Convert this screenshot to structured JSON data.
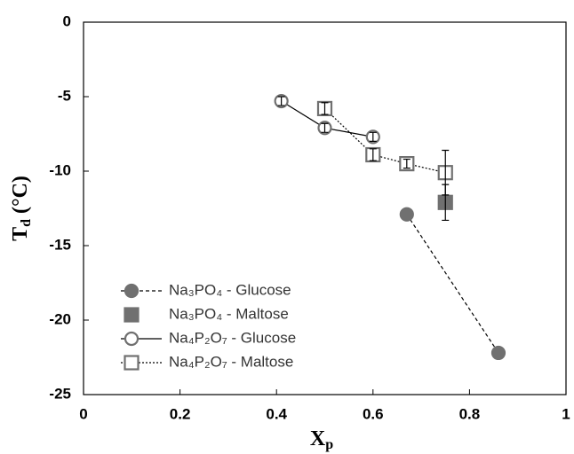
{
  "chart_data": {
    "type": "scatter",
    "x_label": {
      "main": "X",
      "sub": "p"
    },
    "y_label": {
      "main": "T",
      "sub": "d",
      "rest": " (°C)"
    },
    "xlim": [
      0,
      1
    ],
    "xticks": [
      0,
      0.2,
      0.4,
      0.6,
      0.8,
      1
    ],
    "ylim": [
      -25,
      0
    ],
    "yticks": [
      0,
      -5,
      -10,
      -15,
      -20,
      -25
    ],
    "legend": "lower left",
    "series": [
      {
        "name": "Na₃PO₄ - Glucose",
        "color": "#707070",
        "marker": "circle",
        "filled": true,
        "linestyle": "dashed",
        "x": [
          0.67,
          0.86
        ],
        "values": [
          -12.9,
          -22.2
        ],
        "errors": [
          null,
          null
        ]
      },
      {
        "name": "Na₃PO₄ - Maltose",
        "color": "#707070",
        "marker": "square",
        "filled": true,
        "linestyle": "none",
        "x": [
          0.75
        ],
        "values": [
          -12.1
        ],
        "errors": [
          1.2
        ]
      },
      {
        "name": "Na₄P₂O₇ - Glucose",
        "color": "#707070",
        "marker": "circle",
        "filled": false,
        "linestyle": "solid",
        "x": [
          0.41,
          0.5,
          0.6
        ],
        "values": [
          -5.3,
          -7.1,
          -7.7
        ],
        "errors": [
          0.3,
          0.3,
          0.3
        ]
      },
      {
        "name": "Na₄P₂O₇ - Maltose",
        "color": "#707070",
        "marker": "square",
        "filled": false,
        "linestyle": "dotted",
        "x": [
          0.5,
          0.6,
          0.67,
          0.75
        ],
        "values": [
          -5.8,
          -8.9,
          -9.5,
          -10.1
        ],
        "errors": [
          0.4,
          0.4,
          0.3,
          1.5
        ]
      }
    ]
  }
}
